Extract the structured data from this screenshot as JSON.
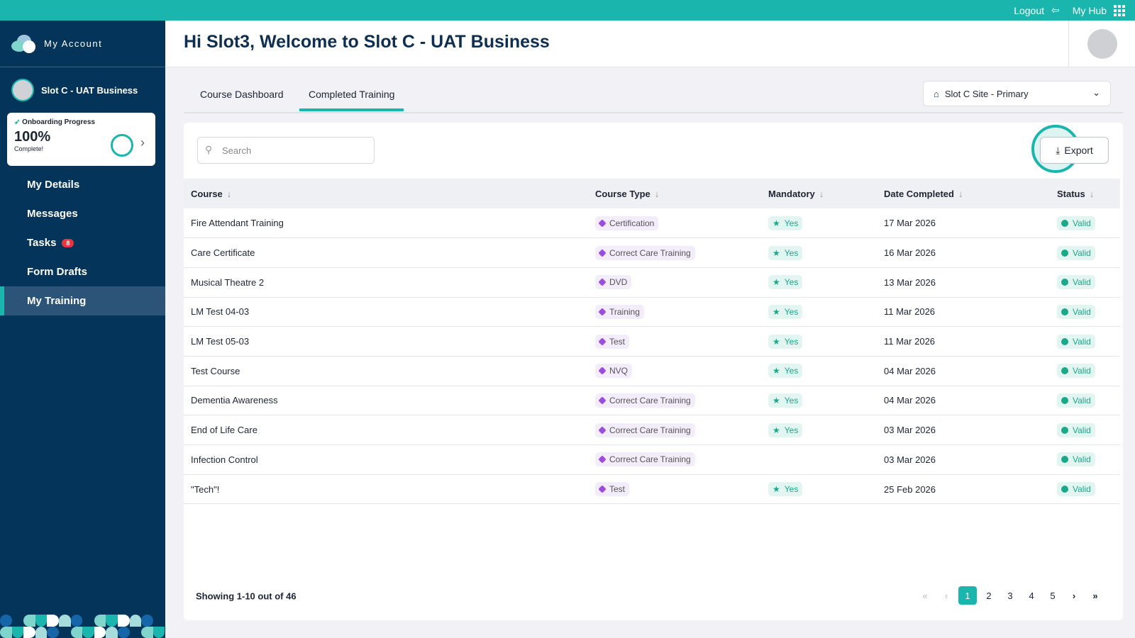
{
  "topbar": {
    "logout": "Logout",
    "hub": "My Hub"
  },
  "sidebar": {
    "brand": "My Account",
    "business": "Slot C - UAT Business",
    "onboarding": {
      "title": "Onboarding Progress",
      "percent": "100%",
      "status": "Complete!",
      "progress": 1.0
    },
    "items": [
      {
        "label": "My Details"
      },
      {
        "label": "Messages"
      },
      {
        "label": "Tasks",
        "badge": "8"
      },
      {
        "label": "Form Drafts"
      },
      {
        "label": "My Training",
        "active": true
      }
    ]
  },
  "header": {
    "title": "Hi Slot3, Welcome to Slot C - UAT Business"
  },
  "tabs": [
    {
      "label": "Course Dashboard"
    },
    {
      "label": "Completed Training",
      "active": true
    }
  ],
  "site_select": {
    "value": "Slot C Site - Primary"
  },
  "search": {
    "placeholder": "Search"
  },
  "export_label": "Export",
  "table": {
    "headers": [
      "Course",
      "Course Type",
      "Mandatory",
      "Date Completed",
      "Status"
    ],
    "rows": [
      [
        "Fire Attendant Training",
        "Certification",
        "Yes",
        "17 Mar 2026",
        "Valid"
      ],
      [
        "Care Certificate",
        "Correct Care Training",
        "Yes",
        "16 Mar 2026",
        "Valid"
      ],
      [
        "Musical Theatre 2",
        "DVD",
        "Yes",
        "13 Mar 2026",
        "Valid"
      ],
      [
        "LM Test 04-03",
        "Training",
        "Yes",
        "11 Mar 2026",
        "Valid"
      ],
      [
        "LM Test 05-03",
        "Test",
        "Yes",
        "11 Mar 2026",
        "Valid"
      ],
      [
        "Test Course",
        "NVQ",
        "Yes",
        "04 Mar 2026",
        "Valid"
      ],
      [
        "Dementia Awareness",
        "Correct Care Training",
        "Yes",
        "04 Mar 2026",
        "Valid"
      ],
      [
        "End of Life Care",
        "Correct Care Training",
        "Yes",
        "03 Mar 2026",
        "Valid"
      ],
      [
        "Infection Control",
        "Correct Care Training",
        "",
        "03 Mar 2026",
        "Valid"
      ],
      [
        "\"Tech\"!",
        "Test",
        "Yes",
        "25 Feb 2026",
        "Valid"
      ]
    ]
  },
  "footer": {
    "showing": "Showing 1-10 out of 46",
    "pages": [
      "1",
      "2",
      "3",
      "4",
      "5"
    ],
    "current": "1"
  },
  "colors": {
    "accent": "#1ab5ad",
    "sidebar": "#04345a"
  }
}
